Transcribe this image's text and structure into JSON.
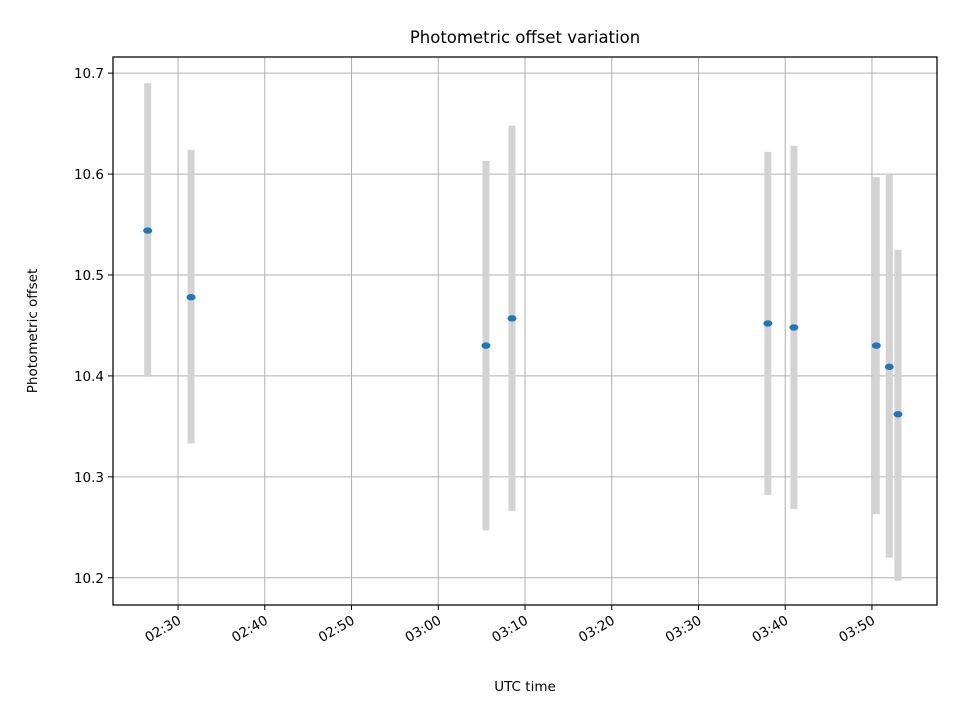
{
  "chart_data": {
    "type": "scatter",
    "title": "Photometric offset variation",
    "xlabel": "UTC time",
    "ylabel": "Photometric offset",
    "x_ticks": [
      "02:30",
      "02:40",
      "02:50",
      "03:00",
      "03:10",
      "03:20",
      "03:30",
      "03:40",
      "03:50"
    ],
    "y_ticks": [
      "10.2",
      "10.3",
      "10.4",
      "10.5",
      "10.6",
      "10.7"
    ],
    "xlim": [
      "02:22:30",
      "03:57:30"
    ],
    "ylim": [
      10.173,
      10.716
    ],
    "grid": true,
    "colors": {
      "marker": "#1f77b4",
      "errorbar": "#d3d3d3",
      "grid": "#b0b0b0",
      "axes": "#000000"
    },
    "points": [
      {
        "x": "02:26:30",
        "y": 10.544,
        "yerr_low": 10.399,
        "yerr_high": 10.69
      },
      {
        "x": "02:31:30",
        "y": 10.478,
        "yerr_low": 10.333,
        "yerr_high": 10.624
      },
      {
        "x": "03:05:30",
        "y": 10.43,
        "yerr_low": 10.247,
        "yerr_high": 10.613
      },
      {
        "x": "03:08:30",
        "y": 10.457,
        "yerr_low": 10.266,
        "yerr_high": 10.648
      },
      {
        "x": "03:38:00",
        "y": 10.452,
        "yerr_low": 10.282,
        "yerr_high": 10.622
      },
      {
        "x": "03:41:00",
        "y": 10.448,
        "yerr_low": 10.268,
        "yerr_high": 10.628
      },
      {
        "x": "03:50:30",
        "y": 10.43,
        "yerr_low": 10.263,
        "yerr_high": 10.597
      },
      {
        "x": "03:52:00",
        "y": 10.409,
        "yerr_low": 10.22,
        "yerr_high": 10.6
      },
      {
        "x": "03:53:00",
        "y": 10.362,
        "yerr_low": 10.197,
        "yerr_high": 10.525
      }
    ]
  }
}
